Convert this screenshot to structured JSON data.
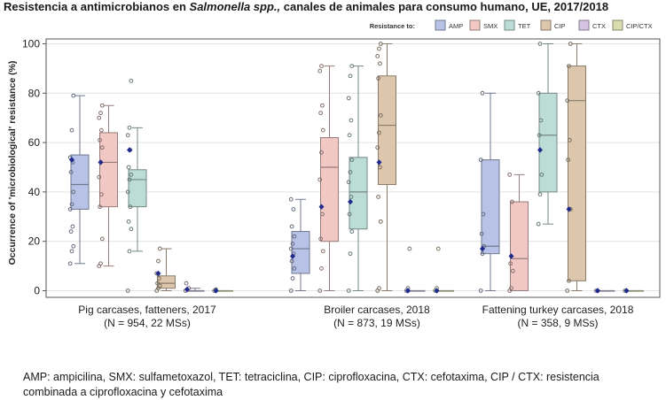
{
  "title_prefix": "Resistencia a antimicrobianos en ",
  "title_italic": "Salmonella spp.,",
  "title_suffix": " canales de animales para consumo humano, UE, 2017/2018",
  "footnote_line1": "AMP: ampicilina, SMX: sulfametoxazol, TET: tetraciclina, CIP: ciprofloxacina, CTX: cefotaxima, CIP / CTX: resistencia",
  "footnote_line2": "combinada a ciprofloxacina y cefotaxima",
  "colors": {
    "AMP": "#b7c2e6",
    "SMX": "#f2c8c4",
    "TET": "#bcdcd6",
    "CIP": "#dcc7ac",
    "CTX": "#d4c3e2",
    "CIP/CTX": "#d8dcae",
    "median_marker": "#1f2a8f"
  },
  "chart_data": {
    "type": "box",
    "ylabel": "Occurrence of 'microbiological' resistance (%)",
    "ylim": [
      0,
      100
    ],
    "yticks": [
      0,
      20,
      40,
      60,
      80,
      100
    ],
    "legend_title": "Resistance to:",
    "legend_position": "top-right",
    "series": [
      "AMP",
      "SMX",
      "TET",
      "CIP",
      "CTX",
      "CIP/CTX"
    ],
    "groups": [
      {
        "label_line1": "Pig carcases, fatteners, 2017",
        "label_line2": "(N = 954, 22 MSs)",
        "boxes": [
          {
            "name": "AMP",
            "min": 11,
            "q1": 33,
            "median": 43,
            "q3": 55,
            "max": 79,
            "marker": 53,
            "points": [
              11,
              16,
              18,
              24,
              26,
              33,
              35,
              40,
              48,
              52,
              54,
              65,
              79
            ]
          },
          {
            "name": "SMX",
            "min": 10,
            "q1": 34,
            "median": 52,
            "q3": 64,
            "max": 75,
            "marker": 52,
            "points": [
              10,
              11,
              21,
              34,
              39,
              46,
              52,
              58,
              61,
              65,
              70,
              72,
              75
            ]
          },
          {
            "name": "TET",
            "min": 16,
            "q1": 34,
            "median": 45,
            "q3": 49,
            "max": 66,
            "marker": 57,
            "points": [
              0,
              16,
              25,
              28,
              34,
              40,
              45,
              47,
              50,
              57,
              63,
              66,
              85
            ]
          },
          {
            "name": "CIP",
            "min": 0,
            "q1": 1,
            "median": 3,
            "q3": 6,
            "max": 17,
            "marker": 7,
            "points": [
              0,
              1,
              2,
              3,
              5,
              7,
              12,
              17
            ]
          },
          {
            "name": "CTX",
            "min": 0,
            "q1": 0,
            "median": 0,
            "q3": 0,
            "max": 1,
            "marker": 0.5,
            "points": [
              0,
              0.5,
              1,
              3
            ]
          },
          {
            "name": "CIP/CTX",
            "min": 0,
            "q1": 0,
            "median": 0,
            "q3": 0,
            "max": 0,
            "marker": 0,
            "points": [
              0,
              0.5
            ]
          }
        ]
      },
      {
        "label_line1": "Broiler carcases, 2018",
        "label_line2": "(N = 873, 19 MSs)",
        "boxes": [
          {
            "name": "AMP",
            "min": 0,
            "q1": 7,
            "median": 17,
            "q3": 24,
            "max": 37,
            "marker": 14,
            "points": [
              0,
              5,
              9,
              12,
              15,
              17,
              19,
              22,
              26,
              33,
              37
            ]
          },
          {
            "name": "SMX",
            "min": 0,
            "q1": 20,
            "median": 50,
            "q3": 62,
            "max": 91,
            "marker": 34,
            "points": [
              0,
              9,
              16,
              21,
              31,
              45,
              56,
              65,
              72,
              75,
              89,
              91
            ]
          },
          {
            "name": "TET",
            "min": 0,
            "q1": 25,
            "median": 40,
            "q3": 54,
            "max": 91,
            "marker": 36,
            "points": [
              0,
              15,
              24,
              31,
              38,
              44,
              48,
              53,
              63,
              69,
              78,
              87,
              91
            ]
          },
          {
            "name": "CIP",
            "min": 0,
            "q1": 43,
            "median": 67,
            "q3": 87,
            "max": 100,
            "marker": 52,
            "points": [
              0,
              1,
              28,
              38,
              50,
              58,
              64,
              71,
              86,
              92,
              95,
              98,
              100
            ]
          },
          {
            "name": "CTX",
            "min": 0,
            "q1": 0,
            "median": 0,
            "q3": 0,
            "max": 0,
            "marker": 0,
            "points": [
              0,
              1,
              17
            ]
          },
          {
            "name": "CIP/CTX",
            "min": 0,
            "q1": 0,
            "median": 0,
            "q3": 0,
            "max": 0,
            "marker": 0,
            "points": [
              0,
              1,
              17
            ]
          }
        ]
      },
      {
        "label_line1": "Fattening turkey carcases, 2018",
        "label_line2": "(N = 358, 9 MSs)",
        "boxes": [
          {
            "name": "AMP",
            "min": 0,
            "q1": 15,
            "median": 18,
            "q3": 53,
            "max": 80,
            "marker": 17,
            "points": [
              0,
              15,
              18,
              23,
              31,
              53,
              80
            ]
          },
          {
            "name": "SMX",
            "min": 0,
            "q1": 0,
            "median": 13,
            "q3": 36,
            "max": 47,
            "marker": 14,
            "points": [
              0,
              1,
              8,
              11,
              36,
              47
            ]
          },
          {
            "name": "TET",
            "min": 27,
            "q1": 40,
            "median": 63,
            "q3": 80,
            "max": 100,
            "marker": 57,
            "points": [
              27,
              39,
              47,
              63,
              69,
              80,
              100
            ]
          },
          {
            "name": "CIP",
            "min": 0,
            "q1": 4,
            "median": 77,
            "q3": 91,
            "max": 100,
            "marker": 33,
            "points": [
              0,
              4,
              33,
              53,
              61,
              77,
              91,
              100
            ]
          },
          {
            "name": "CTX",
            "min": 0,
            "q1": 0,
            "median": 0,
            "q3": 0,
            "max": 0,
            "marker": 0,
            "points": [
              0
            ]
          },
          {
            "name": "CIP/CTX",
            "min": 0,
            "q1": 0,
            "median": 0,
            "q3": 0,
            "max": 0,
            "marker": 0,
            "points": [
              0
            ]
          }
        ]
      }
    ]
  }
}
